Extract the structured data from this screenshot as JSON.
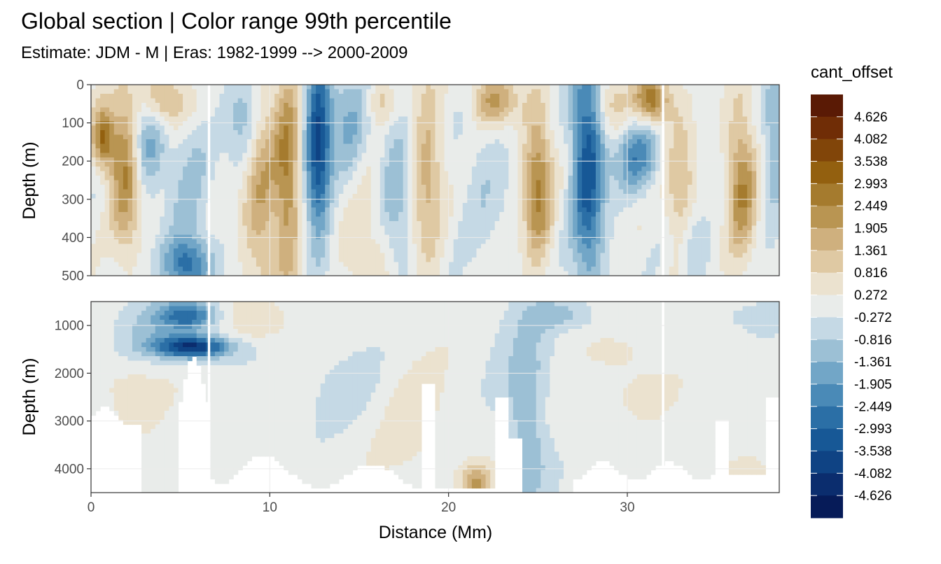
{
  "chart_data": {
    "type": "heatmap",
    "title": "Global section | Color range 99th percentile",
    "subtitle": "Estimate: JDM - M | Eras: 1982-1999 --> 2000-2009",
    "xlabel": "Distance (Mm)",
    "ylabel": "Depth (m)",
    "xlim": [
      0,
      38.5
    ],
    "x_ticks": [
      "0",
      "10",
      "20",
      "30"
    ],
    "x_tick_values": [
      0,
      10,
      20,
      30
    ],
    "grid": true,
    "legend_position": "right",
    "panels": [
      {
        "name": "upper",
        "ylim": [
          0,
          500
        ],
        "y_reversed": true,
        "y_ticks": [
          "0",
          "100",
          "200",
          "300",
          "400",
          "500"
        ],
        "y_tick_values": [
          0,
          100,
          200,
          300,
          400,
          500
        ]
      },
      {
        "name": "lower",
        "ylim": [
          500,
          4500
        ],
        "y_reversed": true,
        "y_ticks": [
          "1000",
          "2000",
          "3000",
          "4000"
        ],
        "y_tick_values": [
          1000,
          2000,
          3000,
          4000
        ]
      }
    ],
    "section_breaks_distance": [
      6.6,
      32.0
    ],
    "legend": {
      "title": "cant_offset",
      "labels": [
        "4.626",
        "4.082",
        "3.538",
        "2.993",
        "2.449",
        "1.905",
        "1.361",
        "0.816",
        "0.272",
        "-0.272",
        "-0.816",
        "-1.361",
        "-1.905",
        "-2.449",
        "-2.993",
        "-3.538",
        "-4.082",
        "-4.626"
      ],
      "colors": [
        "#5a1a05",
        "#702d06",
        "#814509",
        "#93600f",
        "#a57b2e",
        "#b99552",
        "#cfb07e",
        "#dfc9a3",
        "#ebe2cf",
        "#e9ecea",
        "#c5d9e5",
        "#9cc0d5",
        "#72a6c7",
        "#4a8ab7",
        "#2b6fa6",
        "#175896",
        "#0f4384",
        "#0b2d6e",
        "#061b58"
      ]
    }
  }
}
